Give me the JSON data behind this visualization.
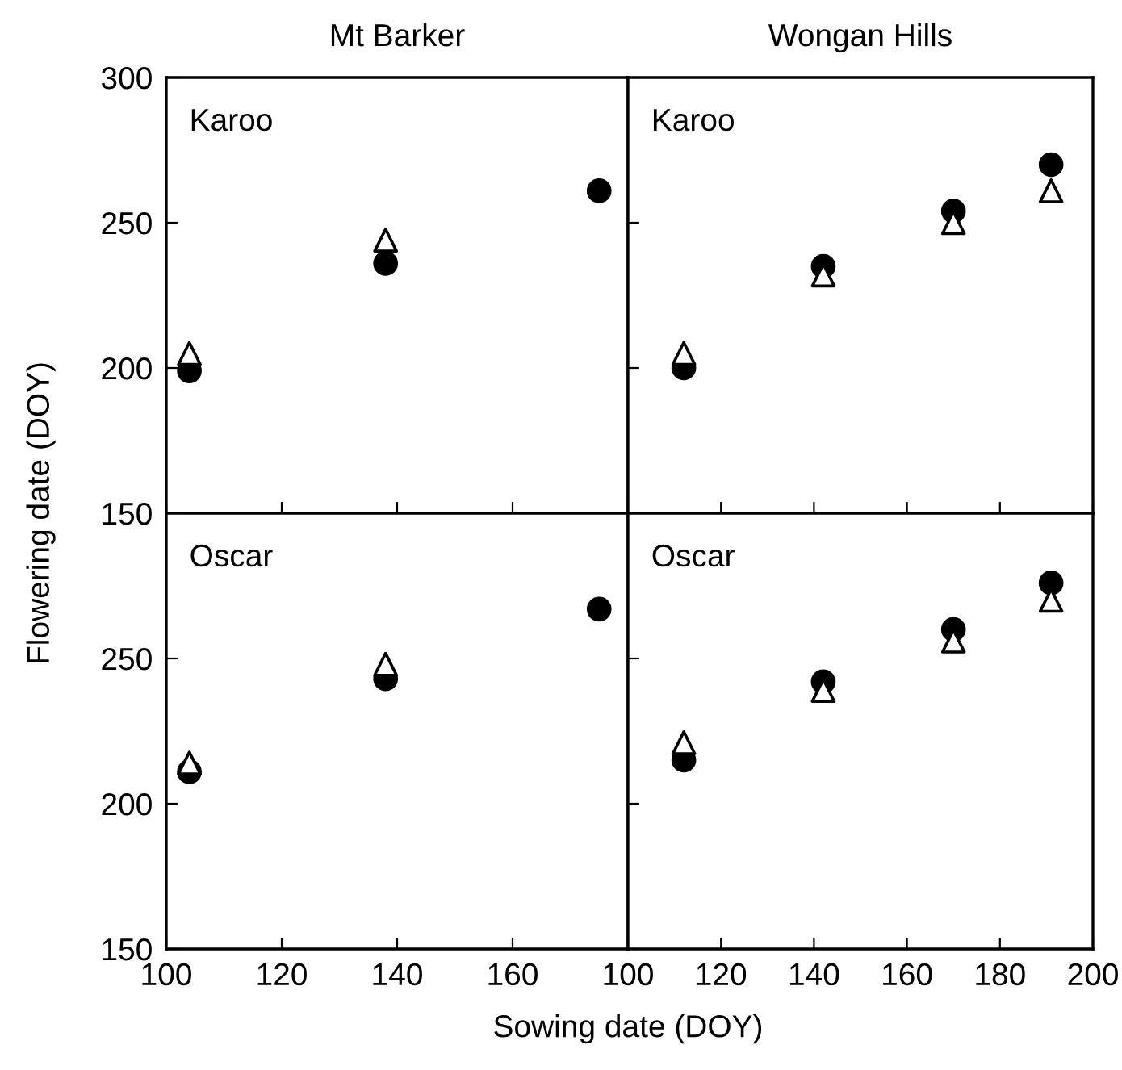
{
  "chart_data": [
    {
      "type": "scatter",
      "title": "Mt Barker",
      "ylabel": "Flowering date (DOY)",
      "annotations": [
        "Karoo"
      ],
      "x": [
        104,
        138,
        175
      ],
      "xlim": [
        100,
        180
      ],
      "xticks": [
        100,
        120,
        140,
        160
      ],
      "ylim": [
        150,
        300
      ],
      "yticks": [
        150,
        200,
        250,
        300
      ],
      "tick_labels": "y",
      "series": [
        {
          "color": "#000000",
          "marker": "circle",
          "values": [
            199,
            236,
            261
          ]
        },
        {
          "color": "#ffffff",
          "marker": "triangle",
          "values": [
            205,
            244,
            null
          ]
        }
      ]
    },
    {
      "type": "scatter",
      "title": "Wongan Hills",
      "annotations": [
        "Karoo"
      ],
      "x": [
        112,
        142,
        170,
        191
      ],
      "xlim": [
        100,
        200
      ],
      "xticks": [
        100,
        120,
        140,
        160,
        180,
        200
      ],
      "ylim": [
        150,
        300
      ],
      "yticks": [
        150,
        200,
        250,
        300
      ],
      "tick_labels": false,
      "series": [
        {
          "color": "#000000",
          "marker": "circle",
          "values": [
            200,
            235,
            254,
            270
          ]
        },
        {
          "color": "#ffffff",
          "marker": "triangle",
          "values": [
            205,
            232,
            250,
            261
          ]
        }
      ]
    },
    {
      "type": "scatter",
      "xlabel": "Sowing date (DOY)",
      "annotations": [
        "Oscar"
      ],
      "x": [
        104,
        138,
        175
      ],
      "xlim": [
        100,
        180
      ],
      "xticks": [
        100,
        120,
        140,
        160
      ],
      "ylim": [
        150,
        300
      ],
      "yticks": [
        150,
        200,
        250
      ],
      "series": [
        {
          "color": "#000000",
          "marker": "circle",
          "values": [
            211,
            243,
            267
          ]
        },
        {
          "color": "#ffffff",
          "marker": "triangle",
          "values": [
            214,
            248,
            null
          ]
        }
      ]
    },
    {
      "type": "scatter",
      "annotations": [
        "Oscar"
      ],
      "x": [
        112,
        142,
        170,
        191
      ],
      "xlim": [
        100,
        200
      ],
      "xticks": [
        100,
        120,
        140,
        160,
        180,
        200
      ],
      "ylim": [
        150,
        300
      ],
      "yticks": [
        150,
        200,
        250
      ],
      "tick_labels": "x",
      "series": [
        {
          "color": "#000000",
          "marker": "circle",
          "values": [
            215,
            242,
            260,
            276
          ]
        },
        {
          "color": "#ffffff",
          "marker": "triangle",
          "values": [
            221,
            239,
            256,
            270
          ]
        }
      ]
    }
  ]
}
